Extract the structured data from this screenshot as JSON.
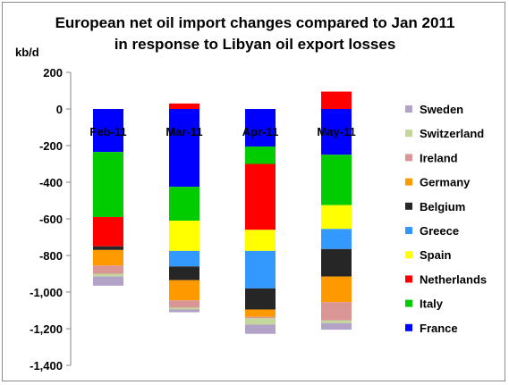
{
  "chart_data": {
    "type": "bar",
    "stacked": true,
    "title_lines": [
      "European net oil import changes compared to Jan 2011",
      "in response to Libyan oil export losses"
    ],
    "ylabel": "kb/d",
    "ylim": [
      -1400,
      200
    ],
    "yticks": [
      200,
      0,
      -200,
      -400,
      -600,
      -800,
      -1000,
      -1200,
      -1400
    ],
    "ytick_labels": [
      "200",
      "0",
      "-200",
      "-400",
      "-600",
      "-800",
      "-1,000",
      "-1,200",
      "-1,400"
    ],
    "grid": false,
    "legend_position": "right",
    "categories": [
      "Feb-11",
      "Mar-11",
      "Apr-11",
      "May-11"
    ],
    "series": [
      {
        "name": "France",
        "color": "#0000ff",
        "values": [
          -235,
          -425,
          -205,
          -250
        ]
      },
      {
        "name": "Italy",
        "color": "#00cc00",
        "values": [
          -355,
          -185,
          -95,
          -275
        ]
      },
      {
        "name": "Netherlands",
        "color": "#ff0000",
        "values": [
          -160,
          30,
          -360,
          95
        ]
      },
      {
        "name": "Spain",
        "color": "#ffff00",
        "values": [
          0,
          -165,
          -115,
          -130
        ]
      },
      {
        "name": "Greece",
        "color": "#3399ff",
        "values": [
          0,
          -85,
          -205,
          -110
        ]
      },
      {
        "name": "Belgium",
        "color": "#262626",
        "values": [
          -20,
          -75,
          -115,
          -150
        ]
      },
      {
        "name": "Germany",
        "color": "#ff9900",
        "values": [
          -85,
          -110,
          -40,
          -140
        ]
      },
      {
        "name": "Ireland",
        "color": "#d99694",
        "values": [
          -45,
          -40,
          -8,
          -100
        ]
      },
      {
        "name": "Switzerland",
        "color": "#c3d69b",
        "values": [
          -15,
          -10,
          -35,
          -15
        ]
      },
      {
        "name": "Sweden",
        "color": "#b3a2c7",
        "values": [
          -50,
          -15,
          -50,
          -35
        ]
      }
    ]
  }
}
